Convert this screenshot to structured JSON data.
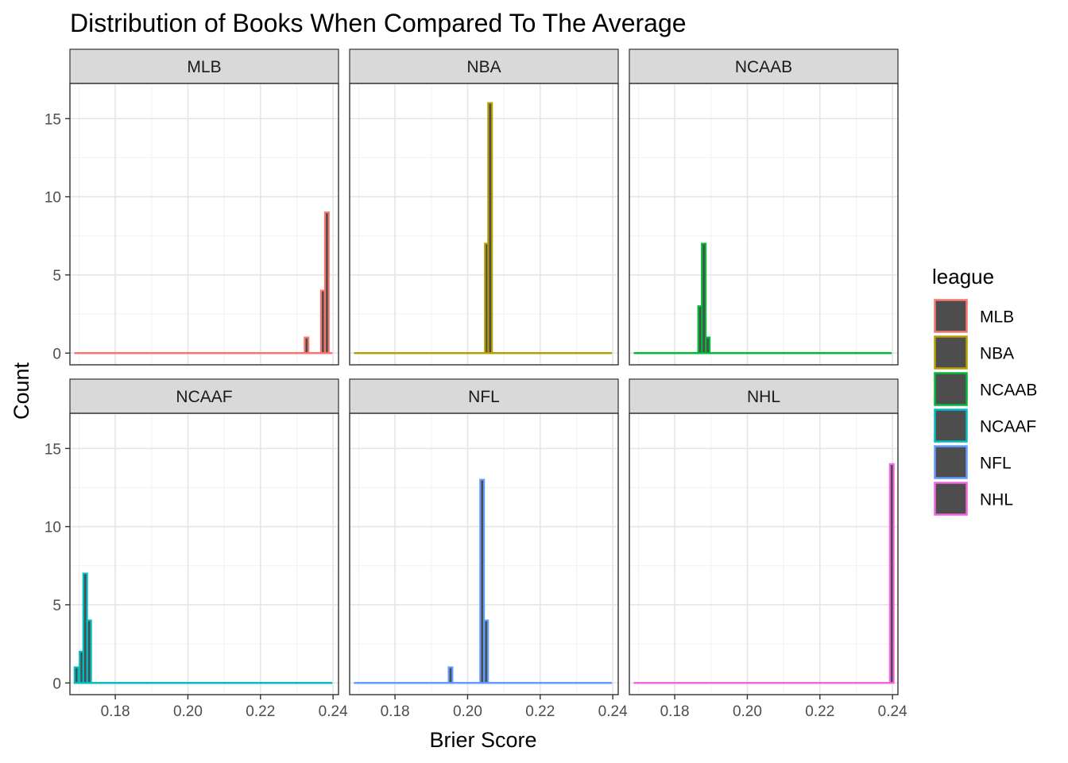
{
  "chart_data": {
    "type": "bar",
    "title": "Distribution of Books When Compared To The Average",
    "xlabel": "Brier Score",
    "ylabel": "Count",
    "xlim": [
      0.1675,
      0.2415
    ],
    "ylim": [
      -0.75,
      17.25
    ],
    "x_ticks": [
      0.18,
      0.2,
      0.22,
      0.24
    ],
    "x_tick_labels": [
      "0.18",
      "0.20",
      "0.22",
      "0.24"
    ],
    "y_ticks": [
      0,
      5,
      10,
      15
    ],
    "y_tick_labels": [
      "0",
      "5",
      "10",
      "15"
    ],
    "grid": true,
    "bin_width": 0.00105,
    "legend": {
      "title": "league",
      "placement": "right",
      "entries": [
        {
          "label": "MLB",
          "color": "#F8766D"
        },
        {
          "label": "NBA",
          "color": "#B79F00"
        },
        {
          "label": "NCAAB",
          "color": "#00BA38"
        },
        {
          "label": "NCAAF",
          "color": "#00BFC4"
        },
        {
          "label": "NFL",
          "color": "#619CFF"
        },
        {
          "label": "NHL",
          "color": "#F564E3"
        }
      ]
    },
    "fill_color": "#4D4D4D",
    "panels": [
      {
        "name": "MLB",
        "color": "#F8766D",
        "baseline": [
          0.1687,
          0.2398
        ],
        "bars": [
          {
            "x": 0.2327,
            "y": 1
          },
          {
            "x": 0.2372,
            "y": 4
          },
          {
            "x": 0.2383,
            "y": 9
          }
        ]
      },
      {
        "name": "NBA",
        "color": "#B79F00",
        "baseline": [
          0.1687,
          0.2398
        ],
        "bars": [
          {
            "x": 0.2053,
            "y": 7
          },
          {
            "x": 0.2062,
            "y": 16
          }
        ]
      },
      {
        "name": "NCAAB",
        "color": "#00BA38",
        "baseline": [
          0.1687,
          0.2398
        ],
        "bars": [
          {
            "x": 0.187,
            "y": 3
          },
          {
            "x": 0.188,
            "y": 7
          },
          {
            "x": 0.1891,
            "y": 1
          }
        ]
      },
      {
        "name": "NCAAF",
        "color": "#00BFC4",
        "baseline": [
          0.1687,
          0.2398
        ],
        "bars": [
          {
            "x": 0.1693,
            "y": 1
          },
          {
            "x": 0.1707,
            "y": 2
          },
          {
            "x": 0.1717,
            "y": 7
          },
          {
            "x": 0.1728,
            "y": 4
          }
        ]
      },
      {
        "name": "NFL",
        "color": "#619CFF",
        "baseline": [
          0.1687,
          0.2398
        ],
        "bars": [
          {
            "x": 0.1953,
            "y": 1
          },
          {
            "x": 0.204,
            "y": 13
          },
          {
            "x": 0.2051,
            "y": 4
          }
        ]
      },
      {
        "name": "NHL",
        "color": "#F564E3",
        "baseline": [
          0.1687,
          0.2398
        ],
        "bars": [
          {
            "x": 0.2398,
            "y": 14
          }
        ]
      }
    ]
  }
}
